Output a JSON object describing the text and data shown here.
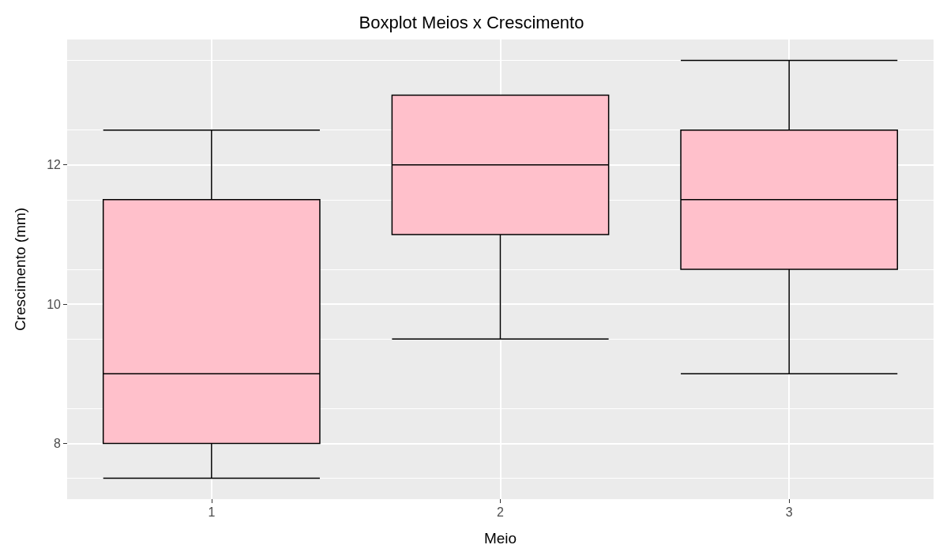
{
  "chart_data": {
    "type": "box",
    "title": "Boxplot Meios x Crescimento",
    "xlabel": "Meio",
    "ylabel": "Crescimento (mm)",
    "categories": [
      "1",
      "2",
      "3"
    ],
    "boxes": [
      {
        "low": 7.5,
        "q1": 8,
        "median": 9,
        "q3": 11.5,
        "high": 12.5
      },
      {
        "low": 9.5,
        "q1": 11,
        "median": 12,
        "q3": 13,
        "high": 13
      },
      {
        "low": 9,
        "q1": 10.5,
        "median": 11.5,
        "q3": 12.5,
        "high": 13.5
      }
    ],
    "color": "#ffc0cb",
    "ylim": [
      7.2,
      13.8
    ],
    "yticks": [
      8,
      10,
      12
    ],
    "grid": true
  }
}
